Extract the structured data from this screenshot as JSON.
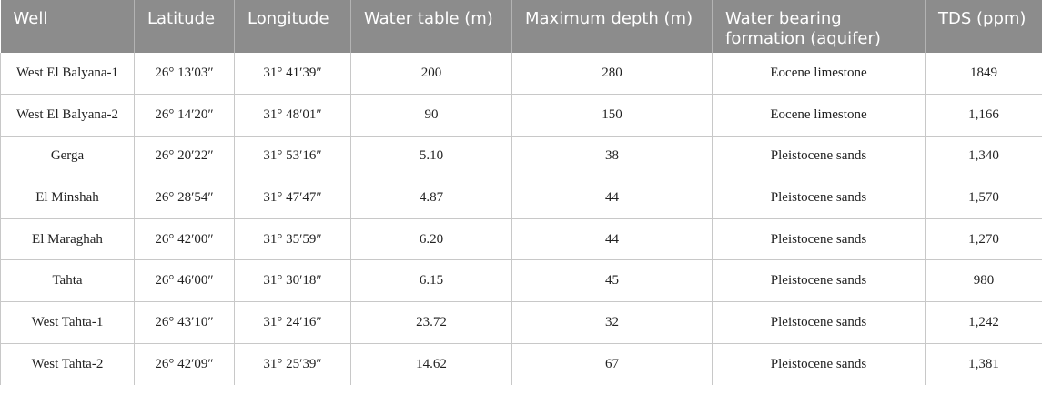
{
  "table": {
    "headers": [
      "Well",
      "Latitude",
      "Longitude",
      "Water table (m)",
      "Maximum depth (m)",
      "Water bearing formation (aquifer)",
      "TDS (ppm)"
    ],
    "rows": [
      [
        "West El Balyana-1",
        "26° 13′03″",
        "31° 41′39″",
        "200",
        "280",
        "Eocene limestone",
        "1849"
      ],
      [
        "West El Balyana-2",
        "26° 14′20″",
        "31° 48′01″",
        "90",
        "150",
        "Eocene limestone",
        "1,166"
      ],
      [
        "Gerga",
        "26° 20′22″",
        "31° 53′16″",
        "5.10",
        "38",
        "Pleistocene sands",
        "1,340"
      ],
      [
        "El Minshah",
        "26° 28′54″",
        "31° 47′47″",
        "4.87",
        "44",
        "Pleistocene sands",
        "1,570"
      ],
      [
        "El Maraghah",
        "26° 42′00″",
        "31° 35′59″",
        "6.20",
        "44",
        "Pleistocene sands",
        "1,270"
      ],
      [
        "Tahta",
        "26° 46′00″",
        "31° 30′18″",
        "6.15",
        "45",
        "Pleistocene sands",
        "980"
      ],
      [
        "West Tahta-1",
        "26° 43′10″",
        "31° 24′16″",
        "23.72",
        "32",
        "Pleistocene sands",
        "1,242"
      ],
      [
        "West Tahta-2",
        "26° 42′09″",
        "31° 25′39″",
        "14.62",
        "67",
        "Pleistocene sands",
        "1,381"
      ]
    ]
  },
  "colors": {
    "header_background": "#8c8c8c",
    "header_text": "#ffffff",
    "cell_border": "#c8c8c8"
  }
}
